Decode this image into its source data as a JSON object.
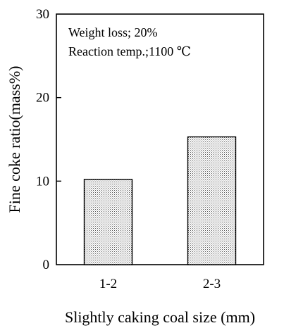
{
  "chart_data": {
    "type": "bar",
    "categories": [
      "1-2",
      "2-3"
    ],
    "values": [
      10.2,
      15.3
    ],
    "xlabel": "Slightly caking coal size  (mm)",
    "ylabel": "Fine coke ratio(mass%)",
    "ylim": [
      0,
      30
    ],
    "yticks": [
      "0",
      "10",
      "20",
      "30"
    ],
    "annotations": [
      "Weight loss; 20%",
      "Reaction temp.;1100 ℃"
    ],
    "grid": false,
    "bar_fill": "stippled"
  }
}
